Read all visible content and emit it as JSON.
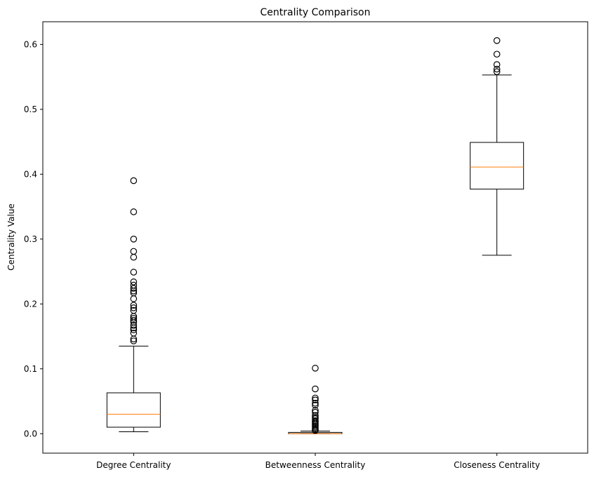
{
  "chart_data": {
    "type": "boxplot",
    "title": "Centrality Comparison",
    "xlabel": "",
    "ylabel": "Centrality Value",
    "ylim": [
      -0.03,
      0.635
    ],
    "yticks": [
      0.0,
      0.1,
      0.2,
      0.3,
      0.4,
      0.5,
      0.6
    ],
    "ytick_labels": [
      "0.0",
      "0.1",
      "0.2",
      "0.3",
      "0.4",
      "0.5",
      "0.6"
    ],
    "grid": false,
    "colors": {
      "box": "#000000",
      "median": "#ff7f0e",
      "outlier": "#000000"
    },
    "boxes": [
      {
        "label": "Degree Centrality",
        "whisker_low": 0.003,
        "q1": 0.01,
        "median": 0.03,
        "q3": 0.063,
        "whisker_high": 0.135,
        "outliers": [
          0.143,
          0.146,
          0.155,
          0.16,
          0.163,
          0.167,
          0.172,
          0.175,
          0.178,
          0.181,
          0.19,
          0.194,
          0.198,
          0.208,
          0.217,
          0.22,
          0.224,
          0.229,
          0.234,
          0.249,
          0.272,
          0.281,
          0.3,
          0.342,
          0.39
        ]
      },
      {
        "label": "Betweenness Centrality",
        "whisker_low": 0.0,
        "q1": 0.0,
        "median": 0.0,
        "q3": 0.002,
        "whisker_high": 0.004,
        "outliers": [
          0.005,
          0.006,
          0.008,
          0.01,
          0.012,
          0.014,
          0.016,
          0.018,
          0.02,
          0.023,
          0.025,
          0.028,
          0.033,
          0.036,
          0.044,
          0.047,
          0.052,
          0.055,
          0.069,
          0.101
        ]
      },
      {
        "label": "Closeness Centrality",
        "whisker_low": 0.275,
        "q1": 0.377,
        "median": 0.411,
        "q3": 0.449,
        "whisker_high": 0.553,
        "outliers": [
          0.558,
          0.562,
          0.569,
          0.585,
          0.606
        ]
      }
    ]
  }
}
